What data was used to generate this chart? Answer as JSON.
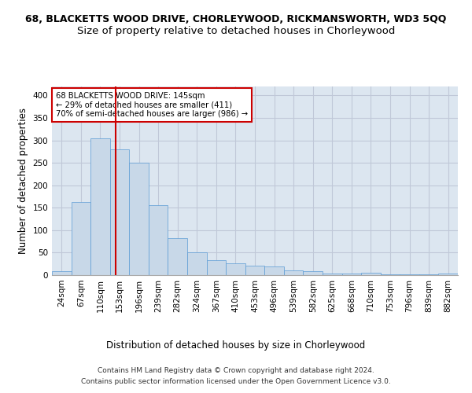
{
  "title_line1": "68, BLACKETTS WOOD DRIVE, CHORLEYWOOD, RICKMANSWORTH, WD3 5QQ",
  "title_line2": "Size of property relative to detached houses in Chorleywood",
  "xlabel": "Distribution of detached houses by size in Chorleywood",
  "ylabel": "Number of detached properties",
  "footer_line1": "Contains HM Land Registry data © Crown copyright and database right 2024.",
  "footer_line2": "Contains public sector information licensed under the Open Government Licence v3.0.",
  "categories": [
    "24sqm",
    "67sqm",
    "110sqm",
    "153sqm",
    "196sqm",
    "239sqm",
    "282sqm",
    "324sqm",
    "367sqm",
    "410sqm",
    "453sqm",
    "496sqm",
    "539sqm",
    "582sqm",
    "625sqm",
    "668sqm",
    "710sqm",
    "753sqm",
    "796sqm",
    "839sqm",
    "882sqm"
  ],
  "values": [
    8,
    163,
    305,
    280,
    251,
    155,
    83,
    50,
    33,
    26,
    21,
    20,
    11,
    8,
    4,
    3,
    5,
    2,
    2,
    2,
    3
  ],
  "bar_color": "#c8d8e8",
  "bar_edge_color": "#5b9bd5",
  "vline_color": "#cc0000",
  "annotation_line1": "68 BLACKETTS WOOD DRIVE: 145sqm",
  "annotation_line2": "← 29% of detached houses are smaller (411)",
  "annotation_line3": "70% of semi-detached houses are larger (986) →",
  "annotation_box_color": "#ffffff",
  "annotation_box_edge": "#cc0000",
  "ylim": [
    0,
    420
  ],
  "yticks": [
    0,
    50,
    100,
    150,
    200,
    250,
    300,
    350,
    400
  ],
  "grid_color": "#c0c8d8",
  "background_color": "#dce6f0",
  "title1_fontsize": 9.0,
  "title2_fontsize": 9.5,
  "axis_label_fontsize": 8.5,
  "tick_fontsize": 7.5,
  "annotation_fontsize": 7.2,
  "footer_fontsize": 6.5
}
